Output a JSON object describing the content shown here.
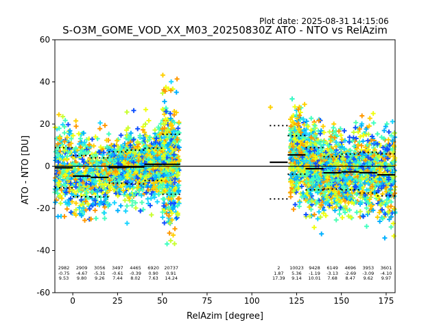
{
  "plot_date": "Plot date: 2025-08-31 14:15:06",
  "title": "S-O3M_GOME_VOD_XX_M03_20250830Z ATO - NTO vs RelAzim",
  "chart_data": {
    "type": "scatter",
    "title": "S-O3M_GOME_VOD_XX_M03_20250830Z ATO - NTO vs RelAzim",
    "xlabel": "RelAzim [degree]",
    "ylabel": "ATO - NTO [DU]",
    "xlim": [
      -10,
      180
    ],
    "ylim": [
      -60,
      60
    ],
    "xticks": [
      0,
      25,
      50,
      75,
      100,
      125,
      150,
      175
    ],
    "yticks": [
      -60,
      -40,
      -20,
      0,
      20,
      40,
      60
    ],
    "reference_line": 0,
    "bins": [
      {
        "x_start": -10,
        "x_end": 0,
        "count": "2982",
        "mean": "-0.75",
        "std": "9.53"
      },
      {
        "x_start": 0,
        "x_end": 10,
        "count": "2909",
        "mean": "-4.67",
        "std": "9.80"
      },
      {
        "x_start": 10,
        "x_end": 20,
        "count": "3056",
        "mean": "-5.31",
        "std": "9.26"
      },
      {
        "x_start": 20,
        "x_end": 30,
        "count": "3497",
        "mean": "-0.61",
        "std": "7.44"
      },
      {
        "x_start": 30,
        "x_end": 40,
        "count": "4465",
        "mean": "-0.39",
        "std": "8.02"
      },
      {
        "x_start": 40,
        "x_end": 50,
        "count": "6920",
        "mean": "0.90",
        "std": "7.63"
      },
      {
        "x_start": 50,
        "x_end": 60,
        "count": "20737",
        "mean": "0.91",
        "std": "14.24"
      },
      {
        "x_start": 110,
        "x_end": 120,
        "count": "2",
        "mean": "1.87",
        "std": "17.39"
      },
      {
        "x_start": 120,
        "x_end": 130,
        "count": "10023",
        "mean": "5.36",
        "std": "9.14"
      },
      {
        "x_start": 130,
        "x_end": 140,
        "count": "9428",
        "mean": "-1.19",
        "std": "10.01"
      },
      {
        "x_start": 140,
        "x_end": 150,
        "count": "6149",
        "mean": "-3.13",
        "std": "7.68"
      },
      {
        "x_start": 150,
        "x_end": 160,
        "count": "4696",
        "mean": "-2.69",
        "std": "8.47"
      },
      {
        "x_start": 160,
        "x_end": 170,
        "count": "3953",
        "mean": "-3.09",
        "std": "9.62"
      },
      {
        "x_start": 170,
        "x_end": 180,
        "count": "3601",
        "mean": "-4.10",
        "std": "9.97"
      }
    ],
    "scatter_colors": [
      "#4dffb3",
      "#40ffbf",
      "#00b0ff",
      "#19d4ff",
      "#c8ff2f",
      "#f0ff0f",
      "#ffd000",
      "#ff9800",
      "#1050ff"
    ],
    "marker": "plus"
  }
}
